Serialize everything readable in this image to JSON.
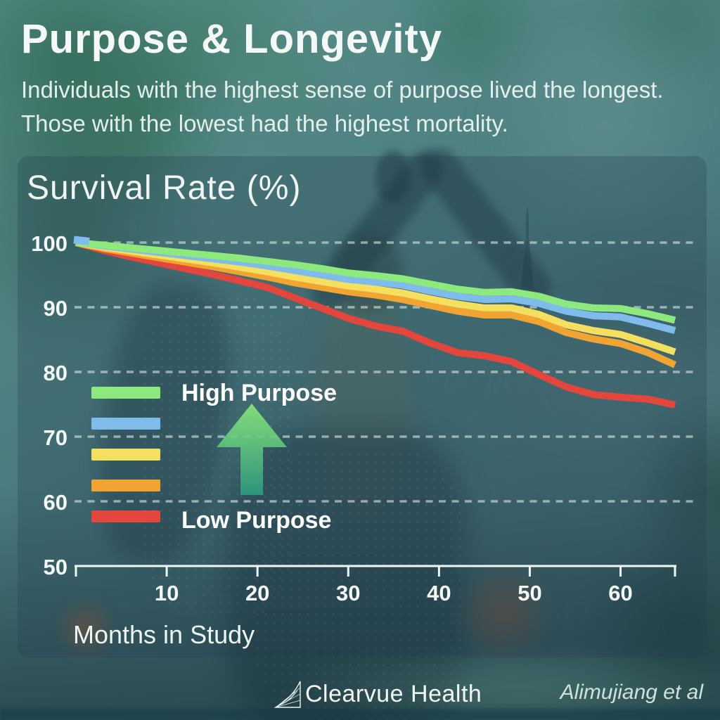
{
  "header": {
    "title": "Purpose & Longevity",
    "subtitle": "Individuals with the highest sense of purpose lived the longest. Those with the lowest had the highest mortality."
  },
  "chart_data": {
    "type": "line",
    "title": "Survival Rate (%)",
    "xlabel": "Months in Study",
    "ylabel": "Survival Rate (%)",
    "xlim": [
      0,
      66
    ],
    "ylim": [
      50,
      100
    ],
    "xticks": [
      10,
      20,
      30,
      40,
      50,
      60
    ],
    "yticks": [
      100,
      90,
      80,
      70,
      60,
      50
    ],
    "grid": "horizontal-dashed",
    "legend_position": "inside-left",
    "x": [
      0,
      3,
      6,
      9,
      12,
      15,
      18,
      21,
      24,
      27,
      30,
      33,
      36,
      39,
      42,
      45,
      48,
      51,
      54,
      57,
      60,
      63,
      66
    ],
    "series": [
      {
        "label": "High Purpose",
        "color": "#8de97e",
        "values": [
          100,
          99.6,
          99.2,
          98.8,
          98.4,
          98.0,
          97.6,
          97.1,
          96.6,
          96.0,
          95.3,
          94.9,
          94.4,
          93.6,
          92.8,
          92.3,
          92.4,
          91.7,
          90.5,
          89.9,
          89.8,
          89.0,
          88.0
        ]
      },
      {
        "label": "",
        "color": "#7fbcec",
        "values": [
          100,
          99.5,
          99.0,
          98.5,
          98.0,
          97.5,
          97.0,
          96.4,
          95.7,
          95.0,
          94.3,
          93.9,
          93.4,
          92.5,
          91.7,
          91.2,
          91.3,
          90.6,
          89.4,
          88.7,
          88.5,
          87.5,
          86.4
        ]
      },
      {
        "label": "",
        "color": "#f4e05e",
        "values": [
          100,
          99.3,
          98.7,
          98.1,
          97.5,
          96.9,
          96.2,
          95.5,
          94.7,
          94.0,
          93.3,
          92.8,
          92.2,
          91.3,
          90.5,
          89.9,
          89.9,
          88.9,
          87.3,
          86.4,
          85.8,
          84.5,
          83.1
        ]
      },
      {
        "label": "",
        "color": "#f2a432",
        "values": [
          100,
          99.1,
          98.4,
          97.7,
          97.0,
          96.3,
          95.5,
          94.7,
          93.8,
          93.1,
          92.4,
          91.9,
          91.2,
          90.3,
          89.4,
          88.8,
          88.8,
          87.8,
          86.1,
          85.1,
          84.4,
          83.0,
          81.1
        ]
      },
      {
        "label": "Low Purpose",
        "color": "#e2463d",
        "values": [
          100,
          98.8,
          97.8,
          96.9,
          96.0,
          95.1,
          94.1,
          93.1,
          91.5,
          89.9,
          88.3,
          87.1,
          86.3,
          84.5,
          83.0,
          82.5,
          81.6,
          79.6,
          77.7,
          76.5,
          76.1,
          75.8,
          74.9
        ]
      }
    ],
    "legend": {
      "high_label": "High Purpose",
      "low_label": "Low Purpose",
      "arrow_direction": "up",
      "arrow_color_top": "#8ce97b",
      "arrow_color_bottom": "#2e9b80"
    }
  },
  "footer": {
    "brand": "Clearvue Health",
    "credit": "Alimujiang et al"
  },
  "colors": {
    "background_teal": "#4b7d80",
    "panel_overlay": "rgba(36,62,80,0.28)",
    "text": "#f4f8f6",
    "gridline": "rgba(222,230,230,0.6)"
  }
}
